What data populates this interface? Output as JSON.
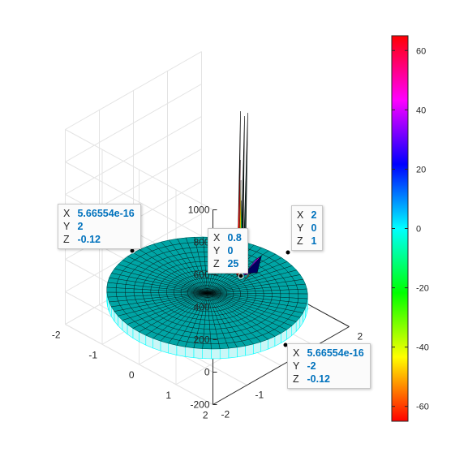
{
  "chart_data": {
    "type": "surface3d",
    "title": "",
    "xlabel": "",
    "ylabel": "",
    "zlabel": "",
    "xlim": [
      -2,
      2
    ],
    "ylim": [
      -2,
      2
    ],
    "zlim": [
      -200,
      1000
    ],
    "x_ticks": [
      "-2",
      "-1",
      "0",
      "1",
      "2"
    ],
    "y_ticks": [
      "-2",
      "-1",
      "0",
      "1",
      "2"
    ],
    "z_ticks": [
      "-200",
      "0",
      "200",
      "400",
      "600",
      "800",
      "1000"
    ],
    "disc_radius": 2,
    "disc_z": -0.12,
    "spike_peak_z": 1000,
    "colorbar": {
      "colormap": "hsv",
      "range": [
        -65,
        65
      ],
      "ticks": [
        "60",
        "40",
        "20",
        "0",
        "-20",
        "-40",
        "-60"
      ]
    },
    "datatips": [
      {
        "x": "5.66554e-16",
        "y": "2",
        "z": "-0.12"
      },
      {
        "x": "0.8",
        "y": "0",
        "z": "25"
      },
      {
        "x": "2",
        "y": "0",
        "z": "1"
      },
      {
        "x": "5.66554e-16",
        "y": "-2",
        "z": "-0.12"
      }
    ],
    "grid": true,
    "colors": {
      "surface": "#00a5a5",
      "side": "#00ffff",
      "edge": "#000000"
    }
  }
}
